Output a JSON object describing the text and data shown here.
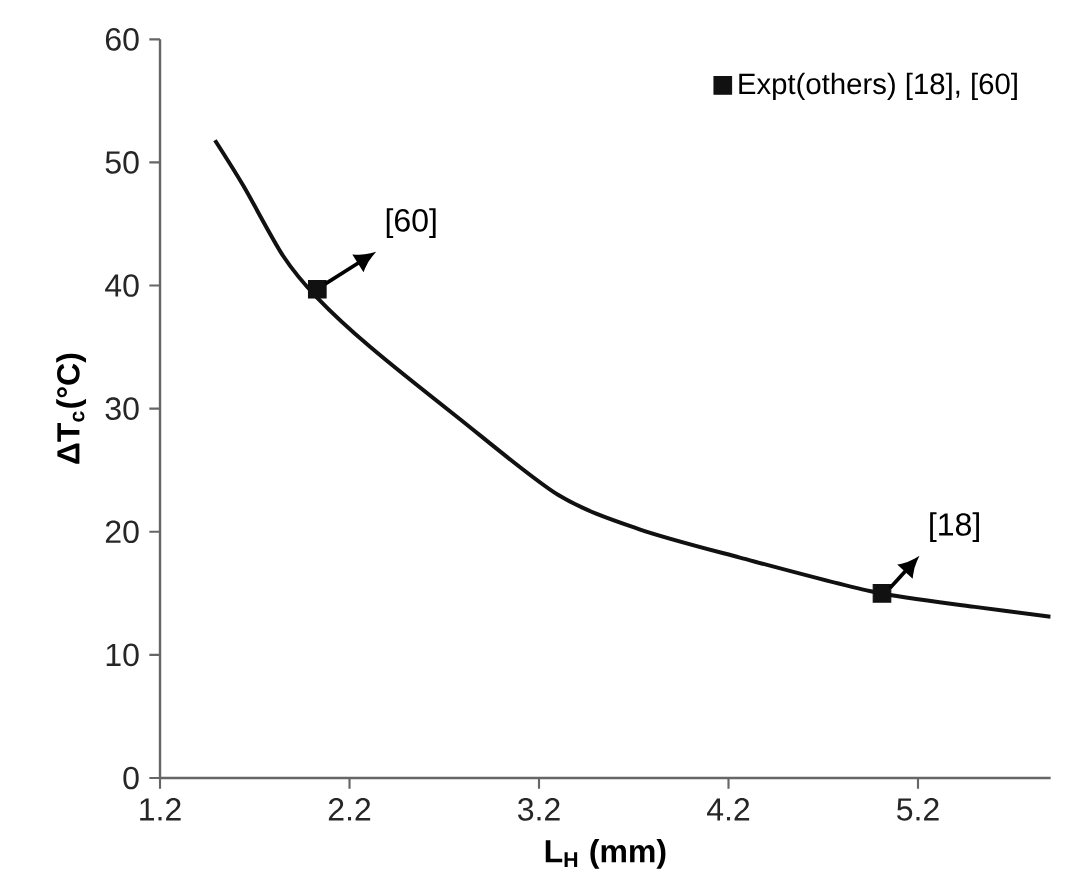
{
  "chart_data": {
    "type": "line",
    "xlabel": "L$_{H}$ (mm)",
    "ylabel": "ΔT$_{c}$(°C)",
    "xlim": [
      1.2,
      5.9
    ],
    "ylim": [
      0,
      60
    ],
    "xticks": [
      1.2,
      2.2,
      3.2,
      4.2,
      5.2
    ],
    "yticks": [
      0,
      10,
      20,
      30,
      40,
      50,
      60
    ],
    "grid": false,
    "legend": "top right",
    "series": [
      {
        "color": "#111111",
        "marker": "none",
        "x": [
          1.49,
          1.64,
          1.85,
          2.03,
          2.31,
          2.77,
          3.3,
          3.73,
          4.26,
          4.97,
          5.5,
          5.9
        ],
        "values": [
          51.8,
          48.1,
          42.4,
          39,
          35,
          29.3,
          23.0,
          20.2,
          17.9,
          15.1,
          13.9,
          13.1
        ]
      },
      {
        "type": "scatter",
        "name": "Expt(others) [18], [60]",
        "color": "#111111",
        "marker": "square",
        "x": [
          2.03,
          5.01
        ],
        "values": [
          39.7,
          15.0
        ]
      }
    ],
    "annotations": [
      {
        "text": "[60]",
        "x": 2.03,
        "y": 39.7
      },
      {
        "text": "[18]",
        "x": 5.01,
        "y": 15.0
      }
    ]
  }
}
